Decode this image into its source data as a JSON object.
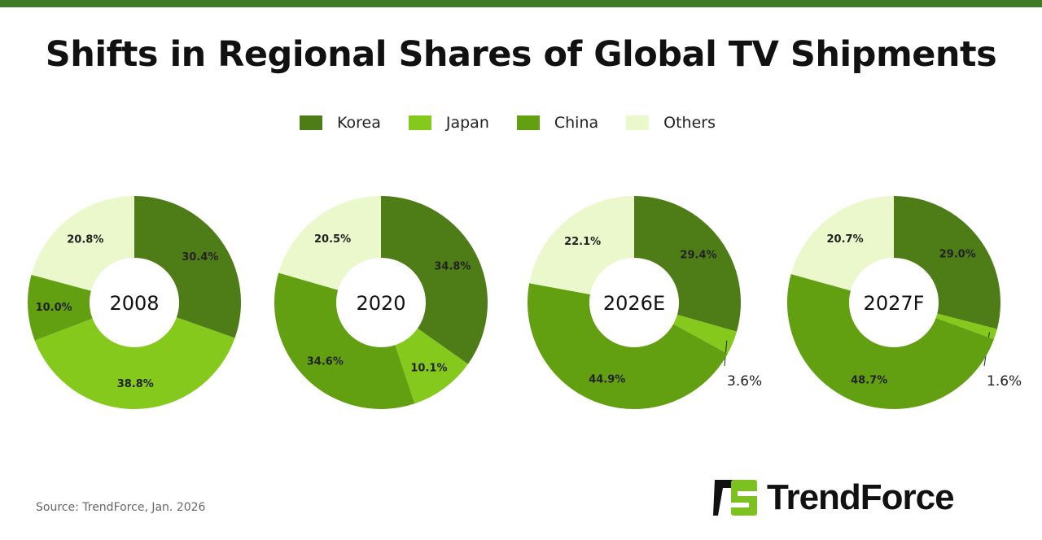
{
  "title": "Shifts in Regional Shares of Global TV Shipments",
  "legend": [
    {
      "label": "Korea",
      "color": "#4e7d18"
    },
    {
      "label": "Japan",
      "color": "#84c91c"
    },
    {
      "label": "China",
      "color": "#62a012"
    },
    {
      "label": "Others",
      "color": "#eaf8cc"
    }
  ],
  "chart_data": {
    "type": "pie",
    "variant": "donut",
    "series_names": [
      "Korea",
      "Japan",
      "China",
      "Others"
    ],
    "charts": [
      {
        "label": "2008",
        "values": [
          30.4,
          38.8,
          10.0,
          20.8
        ]
      },
      {
        "label": "2020",
        "values": [
          34.8,
          10.1,
          34.6,
          20.5
        ]
      },
      {
        "label": "2026E",
        "values": [
          29.4,
          3.6,
          44.9,
          22.1
        ]
      },
      {
        "label": "2027F",
        "values": [
          29.0,
          1.6,
          48.7,
          20.7
        ]
      }
    ],
    "unit": "%"
  },
  "source": "Source: TrendForce, Jan. 2026",
  "logo": {
    "text": "TrendForce",
    "colors": [
      "#111111",
      "#7cc11f"
    ]
  },
  "top_bar_color": "#3f7a25"
}
